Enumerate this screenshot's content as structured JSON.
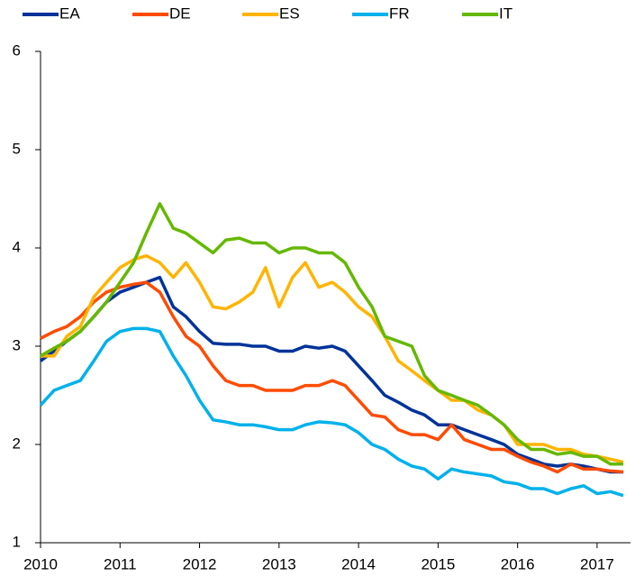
{
  "chart_data": {
    "type": "line",
    "x": [
      2010,
      2010.17,
      2010.33,
      2010.5,
      2010.67,
      2010.83,
      2011,
      2011.17,
      2011.33,
      2011.5,
      2011.67,
      2011.83,
      2012,
      2012.17,
      2012.33,
      2012.5,
      2012.67,
      2012.83,
      2013,
      2013.17,
      2013.33,
      2013.5,
      2013.67,
      2013.83,
      2014,
      2014.17,
      2014.33,
      2014.5,
      2014.67,
      2014.83,
      2015,
      2015.17,
      2015.33,
      2015.5,
      2015.67,
      2015.83,
      2016,
      2016.17,
      2016.33,
      2016.5,
      2016.67,
      2016.83,
      2017,
      2017.17,
      2017.33
    ],
    "series": [
      {
        "name": "EA",
        "color": "#003299",
        "values": [
          2.85,
          2.95,
          3.05,
          3.15,
          3.3,
          3.45,
          3.55,
          3.6,
          3.65,
          3.7,
          3.4,
          3.3,
          3.15,
          3.03,
          3.02,
          3.02,
          3.0,
          3.0,
          2.95,
          2.95,
          3.0,
          2.98,
          3.0,
          2.95,
          2.8,
          2.65,
          2.5,
          2.43,
          2.35,
          2.3,
          2.2,
          2.2,
          2.15,
          2.1,
          2.05,
          2.0,
          1.9,
          1.85,
          1.8,
          1.78,
          1.8,
          1.78,
          1.75,
          1.72,
          1.72
        ]
      },
      {
        "name": "DE",
        "color": "#ff4b00",
        "values": [
          3.08,
          3.15,
          3.2,
          3.3,
          3.45,
          3.55,
          3.6,
          3.63,
          3.65,
          3.55,
          3.3,
          3.1,
          3.0,
          2.8,
          2.65,
          2.6,
          2.6,
          2.55,
          2.55,
          2.55,
          2.6,
          2.6,
          2.65,
          2.6,
          2.45,
          2.3,
          2.28,
          2.15,
          2.1,
          2.1,
          2.05,
          2.2,
          2.05,
          2.0,
          1.95,
          1.95,
          1.88,
          1.82,
          1.78,
          1.72,
          1.8,
          1.75,
          1.75,
          1.73,
          1.72
        ]
      },
      {
        "name": "ES",
        "color": "#ffb400",
        "values": [
          2.9,
          2.9,
          3.1,
          3.2,
          3.5,
          3.65,
          3.8,
          3.88,
          3.92,
          3.85,
          3.7,
          3.85,
          3.65,
          3.4,
          3.38,
          3.45,
          3.55,
          3.8,
          3.4,
          3.7,
          3.85,
          3.6,
          3.65,
          3.55,
          3.4,
          3.3,
          3.1,
          2.85,
          2.75,
          2.65,
          2.55,
          2.45,
          2.45,
          2.35,
          2.3,
          2.2,
          2.0,
          2.0,
          2.0,
          1.95,
          1.95,
          1.9,
          1.88,
          1.85,
          1.82
        ]
      },
      {
        "name": "FR",
        "color": "#00b1ea",
        "values": [
          2.4,
          2.55,
          2.6,
          2.65,
          2.85,
          3.05,
          3.15,
          3.18,
          3.18,
          3.15,
          2.9,
          2.7,
          2.45,
          2.25,
          2.23,
          2.2,
          2.2,
          2.18,
          2.15,
          2.15,
          2.2,
          2.23,
          2.22,
          2.2,
          2.12,
          2.0,
          1.95,
          1.85,
          1.78,
          1.75,
          1.65,
          1.75,
          1.72,
          1.7,
          1.68,
          1.62,
          1.6,
          1.55,
          1.55,
          1.5,
          1.55,
          1.58,
          1.5,
          1.52,
          1.48
        ]
      },
      {
        "name": "IT",
        "color": "#65b800",
        "values": [
          2.9,
          2.98,
          3.05,
          3.15,
          3.3,
          3.45,
          3.65,
          3.85,
          4.15,
          4.45,
          4.2,
          4.15,
          4.05,
          3.95,
          4.08,
          4.1,
          4.05,
          4.05,
          3.95,
          4.0,
          4.0,
          3.95,
          3.95,
          3.85,
          3.6,
          3.4,
          3.1,
          3.05,
          3.0,
          2.7,
          2.55,
          2.5,
          2.45,
          2.4,
          2.3,
          2.2,
          2.05,
          1.95,
          1.95,
          1.9,
          1.92,
          1.88,
          1.88,
          1.8,
          1.8
        ]
      }
    ],
    "xlim": [
      2010,
      2017.42
    ],
    "xticks": [
      2010,
      2011,
      2012,
      2013,
      2014,
      2015,
      2016,
      2017
    ],
    "ylim": [
      1,
      6
    ],
    "yticks": [
      1,
      2,
      3,
      4,
      5,
      6
    ],
    "grid": false,
    "legend": "top"
  }
}
